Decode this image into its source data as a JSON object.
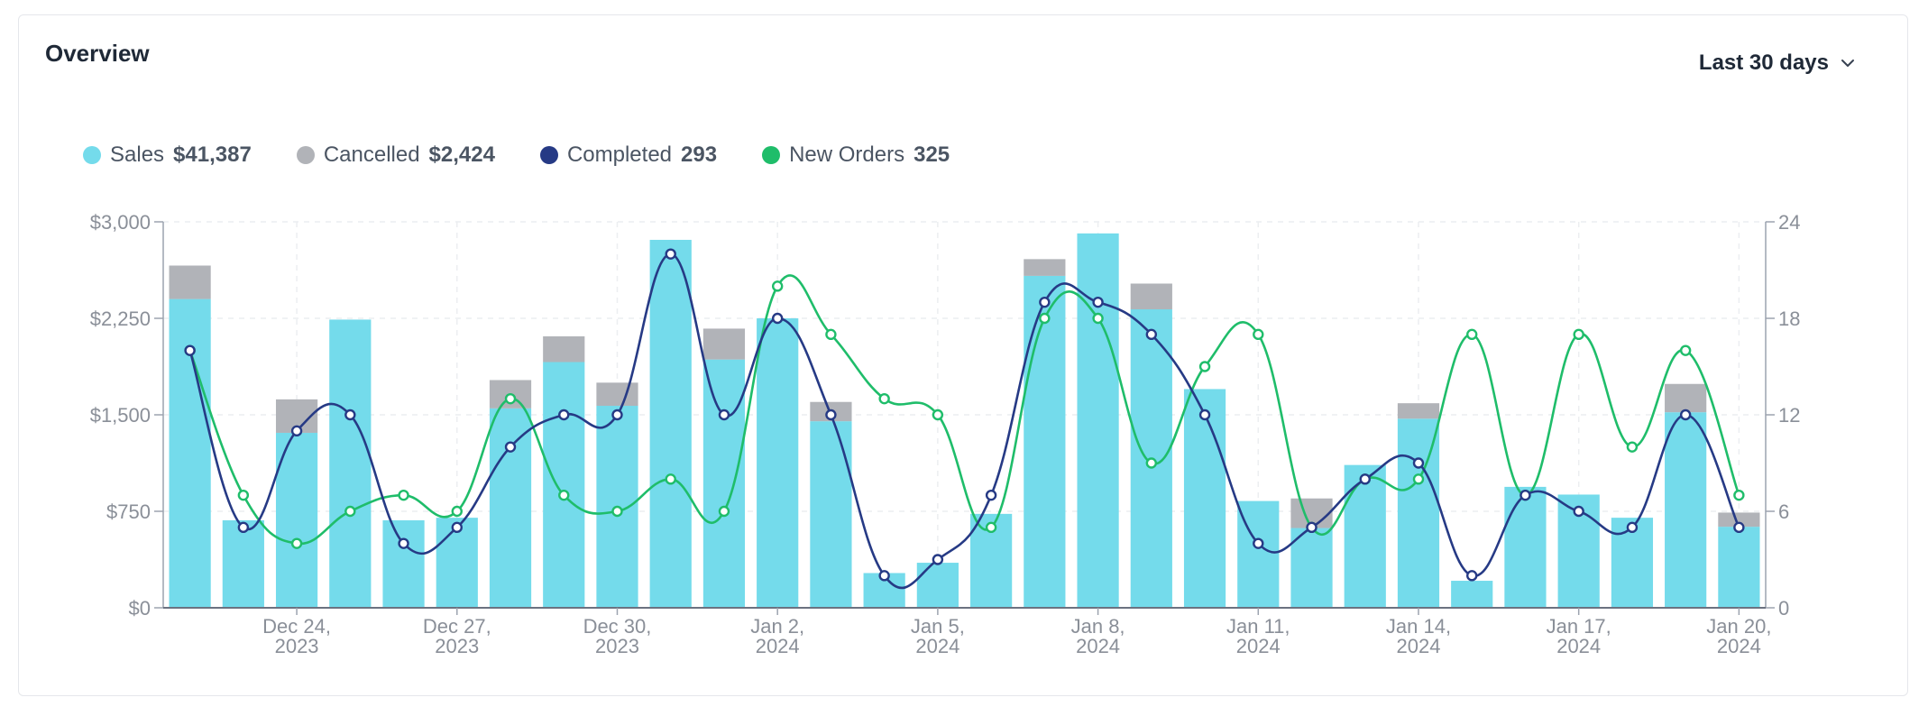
{
  "header": {
    "title": "Overview",
    "range_label": "Last 30 days"
  },
  "legend": [
    {
      "label": "Sales",
      "value": "$41,387",
      "color": "#74dbeb"
    },
    {
      "label": "Cancelled",
      "value": "$2,424",
      "color": "#b1b3b8"
    },
    {
      "label": "Completed",
      "value": "293",
      "color": "#263a85"
    },
    {
      "label": "New Orders",
      "value": "325",
      "color": "#1fbd6a"
    }
  ],
  "chart_data": {
    "type": "bar",
    "categories": [
      "Dec 22",
      "Dec 23",
      "Dec 24",
      "Dec 25",
      "Dec 26",
      "Dec 27",
      "Dec 28",
      "Dec 29",
      "Dec 30",
      "Dec 31",
      "Jan 1",
      "Jan 2",
      "Jan 3",
      "Jan 4",
      "Jan 5",
      "Jan 6",
      "Jan 7",
      "Jan 8",
      "Jan 9",
      "Jan 10",
      "Jan 11",
      "Jan 12",
      "Jan 13",
      "Jan 14",
      "Jan 15",
      "Jan 16",
      "Jan 17",
      "Jan 18",
      "Jan 19",
      "Jan 20"
    ],
    "x_tick_labels": [
      {
        "index": 2,
        "line1": "Dec 24,",
        "line2": "2023"
      },
      {
        "index": 5,
        "line1": "Dec 27,",
        "line2": "2023"
      },
      {
        "index": 8,
        "line1": "Dec 30,",
        "line2": "2023"
      },
      {
        "index": 11,
        "line1": "Jan 2,",
        "line2": "2024"
      },
      {
        "index": 14,
        "line1": "Jan 5,",
        "line2": "2024"
      },
      {
        "index": 17,
        "line1": "Jan 8,",
        "line2": "2024"
      },
      {
        "index": 20,
        "line1": "Jan 11,",
        "line2": "2024"
      },
      {
        "index": 23,
        "line1": "Jan 14,",
        "line2": "2024"
      },
      {
        "index": 26,
        "line1": "Jan 17,",
        "line2": "2024"
      },
      {
        "index": 29,
        "line1": "Jan 20,",
        "line2": "2024"
      }
    ],
    "series": [
      {
        "name": "Sales",
        "kind": "bar",
        "axis": "left",
        "color": "#74dbeb",
        "values": [
          2400,
          680,
          1360,
          2240,
          680,
          700,
          1550,
          1910,
          1570,
          2860,
          1930,
          2250,
          1450,
          270,
          350,
          730,
          2580,
          2910,
          2320,
          1700,
          830,
          620,
          1110,
          1470,
          210,
          940,
          880,
          700,
          1520,
          630
        ]
      },
      {
        "name": "Cancelled",
        "kind": "bar-stack",
        "axis": "left",
        "color": "#b1b3b8",
        "values": [
          260,
          0,
          260,
          0,
          0,
          0,
          220,
          200,
          180,
          0,
          240,
          0,
          150,
          0,
          0,
          0,
          130,
          0,
          200,
          0,
          0,
          230,
          0,
          120,
          0,
          0,
          0,
          0,
          220,
          110
        ]
      },
      {
        "name": "Completed",
        "kind": "line",
        "axis": "right",
        "color": "#263a85",
        "values": [
          16,
          5,
          11,
          12,
          4,
          5,
          10,
          12,
          12,
          22,
          12,
          18,
          12,
          2,
          3,
          7,
          19,
          19,
          17,
          12,
          4,
          5,
          8,
          9,
          2,
          7,
          6,
          5,
          12,
          5
        ]
      },
      {
        "name": "New Orders",
        "kind": "line",
        "axis": "right",
        "color": "#1fbd6a",
        "values": [
          16,
          7,
          4,
          6,
          7,
          6,
          13,
          7,
          6,
          8,
          6,
          20,
          17,
          13,
          12,
          5,
          18,
          18,
          9,
          15,
          17,
          5,
          8,
          8,
          17,
          7,
          17,
          10,
          16,
          7
        ]
      }
    ],
    "y_left": {
      "ticks": [
        "$0",
        "$750",
        "$1,500",
        "$2,250",
        "$3,000"
      ],
      "ylim": [
        0,
        3000
      ]
    },
    "y_right": {
      "ticks": [
        "0",
        "6",
        "12",
        "18",
        "24"
      ],
      "ylim": [
        0,
        24
      ]
    },
    "grid": true,
    "legend_position": "top-left"
  }
}
